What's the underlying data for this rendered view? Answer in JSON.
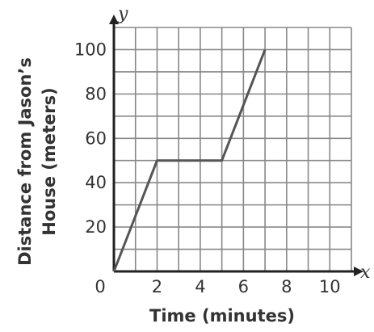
{
  "chart_data": {
    "type": "line",
    "xlabel": "Time (minutes)",
    "ylabel_lines": [
      "Distance from Jason’s",
      "House (meters)"
    ],
    "x_axis_letter": "x",
    "y_axis_letter": "y",
    "origin_label": "0",
    "xlim": [
      0,
      11
    ],
    "ylim": [
      0,
      110
    ],
    "x_gridlines": [
      0,
      1,
      2,
      3,
      4,
      5,
      6,
      7,
      8,
      9,
      10,
      11
    ],
    "y_gridlines": [
      0,
      10,
      20,
      30,
      40,
      50,
      60,
      70,
      80,
      90,
      100,
      110
    ],
    "x_ticks": [
      {
        "value": 2,
        "label": "2"
      },
      {
        "value": 4,
        "label": "4"
      },
      {
        "value": 6,
        "label": "6"
      },
      {
        "value": 8,
        "label": "8"
      },
      {
        "value": 10,
        "label": "10"
      }
    ],
    "y_ticks": [
      {
        "value": 20,
        "label": "20"
      },
      {
        "value": 40,
        "label": "40"
      },
      {
        "value": 60,
        "label": "60"
      },
      {
        "value": 80,
        "label": "80"
      },
      {
        "value": 100,
        "label": "100"
      }
    ],
    "grid": true,
    "series": [
      {
        "x": [
          0,
          2,
          5,
          7
        ],
        "y": [
          0,
          50,
          50,
          100
        ],
        "color": "#555555"
      }
    ]
  }
}
